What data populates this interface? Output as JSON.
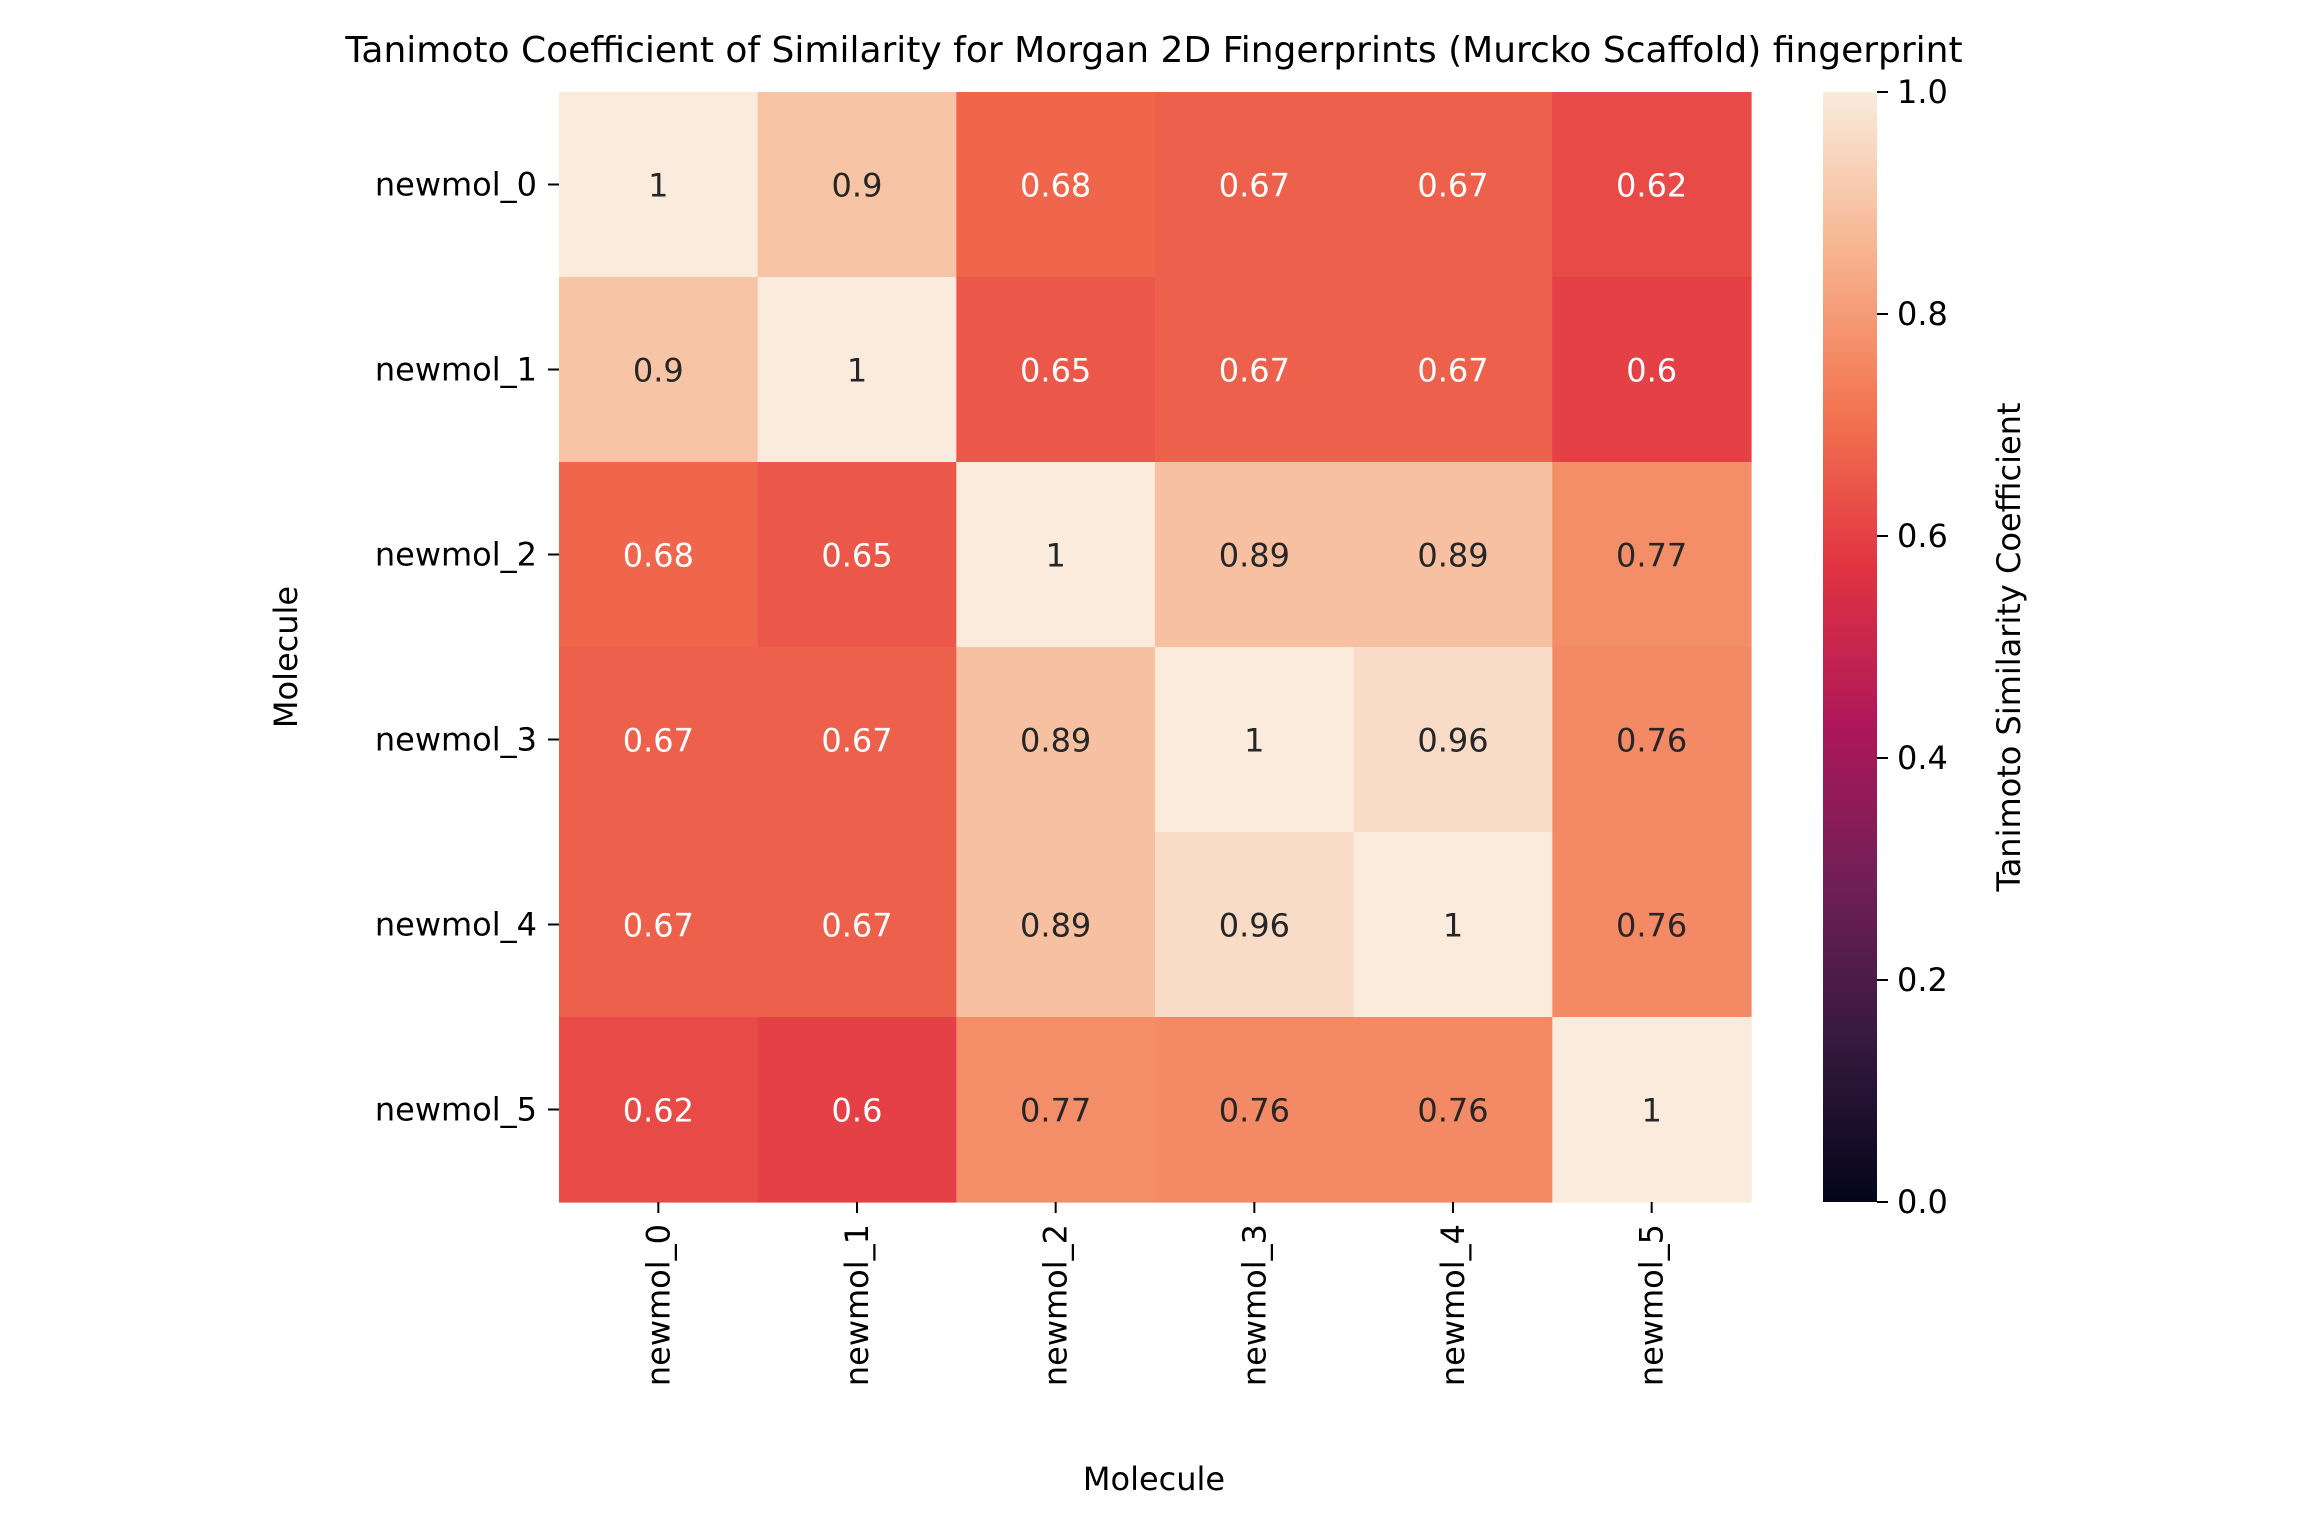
{
  "chart_data": {
    "type": "heatmap",
    "title": "Tanimoto Coefficient of Similarity for Morgan 2D Fingerprints (Murcko Scaffold) fingerprint",
    "xlabel": "Molecule",
    "ylabel": "Molecule",
    "row_labels": [
      "newmol_0",
      "newmol_1",
      "newmol_2",
      "newmol_3",
      "newmol_4",
      "newmol_5"
    ],
    "col_labels": [
      "newmol_0",
      "newmol_1",
      "newmol_2",
      "newmol_3",
      "newmol_4",
      "newmol_5"
    ],
    "values": [
      [
        1,
        0.9,
        0.68,
        0.67,
        0.67,
        0.62
      ],
      [
        0.9,
        1,
        0.65,
        0.67,
        0.67,
        0.6
      ],
      [
        0.68,
        0.65,
        1,
        0.89,
        0.89,
        0.77
      ],
      [
        0.67,
        0.67,
        0.89,
        1,
        0.96,
        0.76
      ],
      [
        0.67,
        0.67,
        0.89,
        0.96,
        1,
        0.76
      ],
      [
        0.62,
        0.6,
        0.77,
        0.76,
        0.76,
        1
      ]
    ],
    "cell_labels": [
      [
        "1",
        "0.9",
        "0.68",
        "0.67",
        "0.67",
        "0.62"
      ],
      [
        "0.9",
        "1",
        "0.65",
        "0.67",
        "0.67",
        "0.6"
      ],
      [
        "0.68",
        "0.65",
        "1",
        "0.89",
        "0.89",
        "0.77"
      ],
      [
        "0.67",
        "0.67",
        "0.89",
        "1",
        "0.96",
        "0.76"
      ],
      [
        "0.67",
        "0.67",
        "0.89",
        "0.96",
        "1",
        "0.76"
      ],
      [
        "0.62",
        "0.6",
        "0.77",
        "0.76",
        "0.76",
        "1"
      ]
    ],
    "colorbar": {
      "label": "Tanimoto Similarity Coefficient",
      "range": [
        0,
        1
      ],
      "ticks": [
        0.0,
        0.2,
        0.4,
        0.6,
        0.8,
        1.0
      ],
      "tick_labels": [
        "0.0",
        "0.2",
        "0.4",
        "0.6",
        "0.8",
        "1.0"
      ],
      "colormap": "rocket",
      "stops": [
        "#03051a",
        "#35193e",
        "#701f57",
        "#ad1759",
        "#e13342",
        "#f37651",
        "#f6b48f",
        "#faebdd"
      ]
    },
    "grid": false
  }
}
